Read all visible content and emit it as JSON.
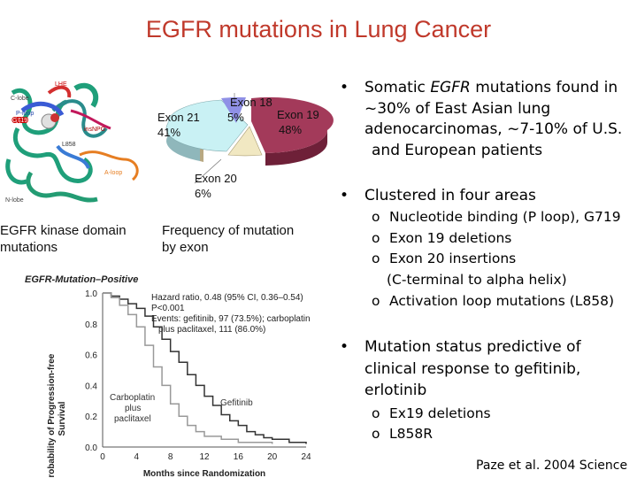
{
  "slide": {
    "title": "EGFR mutations in Lung Cancer",
    "title_color": "#c0392b"
  },
  "structure": {
    "labels": {
      "c_lobe": "C-lobe",
      "p_loop": "P-loop",
      "g719": "G719",
      "lhe": "LHE",
      "ins_npg": "insNPG",
      "l858": "L858",
      "a_loop": "A-loop",
      "n_lobe": "N-lobe"
    },
    "caption": [
      "EGFR kinase domain",
      "mutations"
    ]
  },
  "pie": {
    "caption": [
      "Frequency of mutation",
      "by exon"
    ],
    "slices": [
      {
        "label": "Exon 19",
        "percent": "48%",
        "color": "#a33a5a"
      },
      {
        "label": "Exon 21",
        "percent": "41%",
        "color": "#c9f1f4"
      },
      {
        "label": "Exon 20",
        "percent": "6%",
        "color": "#f1e8c2"
      },
      {
        "label": "Exon 18",
        "percent": "5%",
        "color": "#8f90e6"
      }
    ]
  },
  "km": {
    "heading": "EGFR-Mutation–Positive",
    "stats": [
      "Hazard ratio, 0.48 (95% CI, 0.36–0.54)",
      "P<0.001",
      "Events: gefitinib, 97 (73.5%); carboplatin",
      "plus paclitaxel, 111 (86.0%)"
    ],
    "ylabel_lines": [
      "Probability of Progression-free",
      "Survival"
    ],
    "y_ticks": [
      "0.0",
      "0.2",
      "0.4",
      "0.6",
      "0.8",
      "1.0"
    ],
    "x_ticks": [
      "0",
      "4",
      "8",
      "12",
      "16",
      "20",
      "24"
    ],
    "xlabel": "Months since Randomization",
    "curve_labels": {
      "carbo": [
        "Carboplatin",
        "plus",
        "paclitaxel"
      ],
      "gef": "Gefitinib"
    }
  },
  "bullets": [
    {
      "lines": [
        "Somatic EGFR mutations found in",
        "~30% of East Asian lung",
        "adenocarcinomas, ~7-10% of U.S.",
        "and European patients"
      ],
      "sub": []
    },
    {
      "lines": [
        "Clustered in four areas"
      ],
      "sub": [
        "Nucleotide binding (P loop), G719",
        "Exon 19 deletions",
        "Exon 20 insertions",
        "(C-terminal to alpha helix)",
        "Activation loop mutations (L858)"
      ]
    },
    {
      "lines": [
        "Mutation status predictive of",
        "clinical response to gefitinib,",
        "erlotinib"
      ],
      "sub": [
        "Ex19 deletions",
        "L858R"
      ]
    }
  ],
  "citation": "Paze et al. 2004 Science"
}
